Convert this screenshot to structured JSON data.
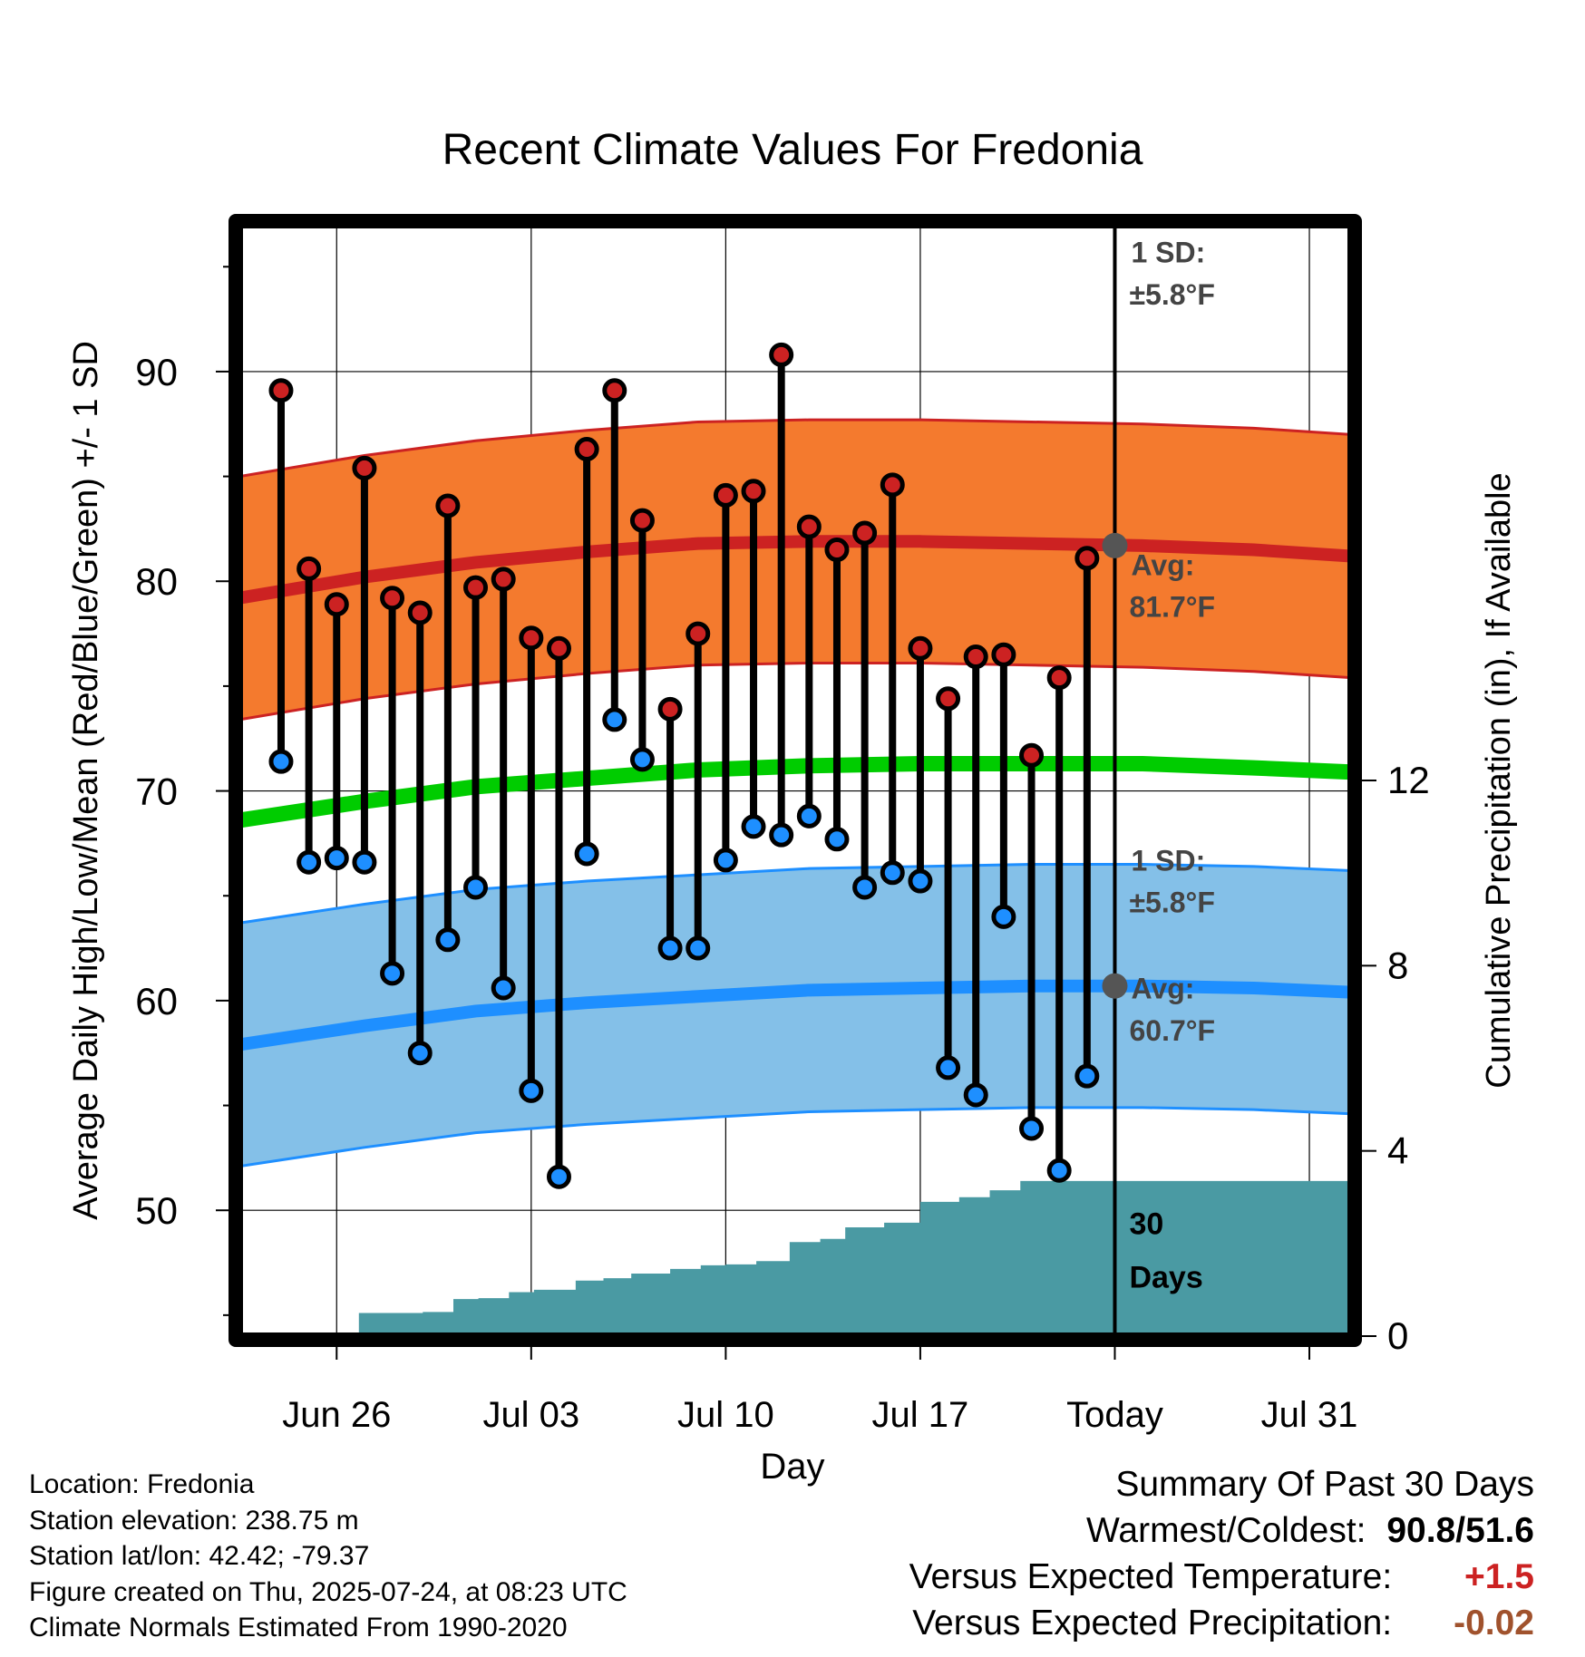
{
  "chart_data": {
    "type": "line",
    "title": "Recent Climate Values For Fredonia",
    "xlabel": "Day",
    "ylabel": "Average Daily High/Low/Mean (Red/Blue/Green) +/- 1 SD",
    "y2label": "Cumulative Precipitation (in), If Available",
    "x_ticks": [
      "Jun 26",
      "Jul 03",
      "Jul 10",
      "Jul 17",
      "Today",
      "Jul 31"
    ],
    "x_tick_days": [
      3,
      10,
      17,
      24,
      31,
      38
    ],
    "x_range_days": [
      -0.5,
      39.5
    ],
    "y_ticks": [
      50,
      60,
      70,
      80,
      90
    ],
    "ylim": [
      44,
      97
    ],
    "y2_ticks": [
      0,
      4,
      8,
      12
    ],
    "y2lim": [
      0,
      24
    ],
    "today_day": 31,
    "grid": true,
    "observed": {
      "days": [
        1,
        2,
        3,
        4,
        5,
        6,
        7,
        8,
        9,
        10,
        11,
        12,
        13,
        14,
        15,
        16,
        17,
        18,
        19,
        20,
        21,
        22,
        23,
        24,
        25,
        26,
        27,
        28,
        29,
        30
      ],
      "high": [
        89.1,
        80.6,
        78.9,
        85.4,
        79.2,
        78.5,
        83.6,
        79.7,
        80.1,
        77.3,
        76.8,
        86.3,
        89.1,
        82.9,
        73.9,
        77.5,
        84.1,
        84.3,
        90.8,
        82.6,
        81.5,
        82.3,
        84.6,
        76.8,
        74.4,
        76.4,
        76.5,
        71.7,
        75.4,
        81.1
      ],
      "low": [
        71.4,
        66.6,
        66.8,
        66.6,
        61.3,
        57.5,
        62.9,
        65.4,
        60.6,
        55.7,
        51.6,
        67.0,
        73.4,
        71.5,
        62.5,
        62.5,
        66.7,
        68.3,
        67.9,
        68.8,
        67.7,
        65.4,
        66.1,
        65.7,
        56.8,
        55.5,
        64.0,
        53.9,
        51.9,
        56.4
      ],
      "high_color": "#cc2222",
      "low_color": "#1e8fff"
    },
    "normals": {
      "days": [
        -0.5,
        4,
        8,
        12,
        16,
        20,
        24,
        28,
        32,
        36,
        39.5
      ],
      "high_avg": [
        79.2,
        80.2,
        80.9,
        81.4,
        81.8,
        81.9,
        81.9,
        81.8,
        81.7,
        81.5,
        81.2
      ],
      "high_sd": 5.8,
      "low_avg": [
        57.9,
        58.8,
        59.5,
        59.9,
        60.2,
        60.5,
        60.6,
        60.7,
        60.7,
        60.6,
        60.4
      ],
      "low_sd": 5.8,
      "mean_avg": [
        68.6,
        69.5,
        70.2,
        70.6,
        71.0,
        71.2,
        71.3,
        71.3,
        71.3,
        71.1,
        70.9
      ],
      "high_band_color": "#f47a2e",
      "high_line_color": "#cc2222",
      "low_band_color": "#84c0e8",
      "low_line_color": "#1e8fff",
      "mean_color": "#00cc00"
    },
    "precip": {
      "days": [
        2.6,
        3.8,
        6.1,
        7.2,
        8.1,
        9.2,
        10.1,
        11.6,
        12.6,
        13.6,
        15.0,
        16.1,
        17.0,
        18.1,
        19.3,
        20.4,
        21.3,
        22.7,
        24.0,
        25.4,
        26.5,
        27.6,
        28.9,
        30.0,
        31.2,
        32.5,
        35.4,
        39.5
      ],
      "cumulative": [
        0.0,
        0.5,
        0.52,
        0.8,
        0.82,
        0.95,
        1.0,
        1.2,
        1.25,
        1.35,
        1.45,
        1.53,
        1.55,
        1.62,
        2.03,
        2.1,
        2.35,
        2.45,
        2.9,
        3.0,
        3.15,
        3.35,
        3.35,
        3.35,
        3.35,
        3.35,
        3.35,
        3.35
      ],
      "color": "#4a9aa3"
    },
    "annotations": {
      "high_sd_label": "1 SD:",
      "high_sd_value": "±5.8°F",
      "high_avg_label": "Avg:",
      "high_avg_value": "81.7°F",
      "low_sd_label": "1 SD:",
      "low_sd_value": "±5.8°F",
      "low_avg_label": "Avg:",
      "low_avg_value": "60.7°F",
      "days_number": "30",
      "days_word": "Days",
      "today_high_avg": 81.7,
      "today_low_avg": 60.7
    }
  },
  "footer": {
    "location": "Location: Fredonia",
    "elevation": "Station elevation: 238.75 m",
    "latlon": "Station lat/lon: 42.42; -79.37",
    "created": "Figure created on Thu, 2025-07-24, at 08:23 UTC",
    "normals": "Climate Normals Estimated From 1990-2020"
  },
  "summary": {
    "title": "Summary Of Past 30 Days",
    "warmest_label": "Warmest/Coldest:",
    "warmest_value": "90.8",
    "coldest_value": "51.6",
    "temp_label": "Versus Expected Temperature:",
    "temp_value": "+1.5",
    "temp_color": "#cc2222",
    "precip_label": "Versus Expected Precipitation:",
    "precip_value": "-0.02",
    "precip_color": "#a0522d"
  }
}
